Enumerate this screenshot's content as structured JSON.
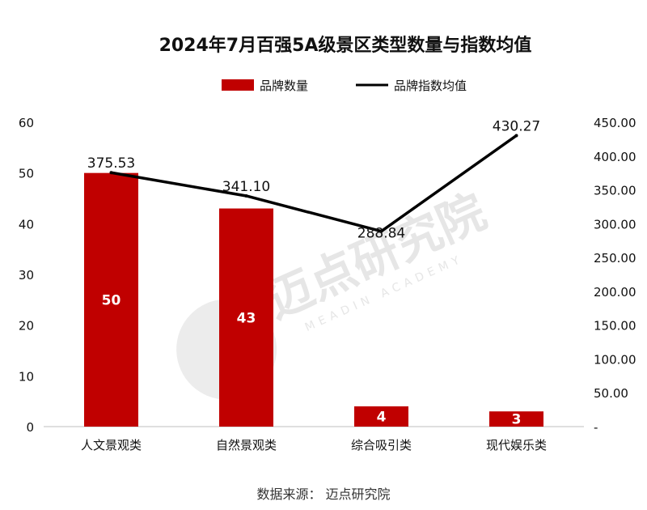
{
  "chart_data": {
    "type": "bar",
    "title": "2024年7月百强5A级景区类型数量与指数均值",
    "categories": [
      "人文景观类",
      "自然景观类",
      "综合吸引类",
      "现代娱乐类"
    ],
    "series": [
      {
        "name": "品牌数量",
        "type": "bar",
        "axis": "left",
        "values": [
          50,
          43,
          4,
          3
        ],
        "color": "#c00000"
      },
      {
        "name": "品牌指数均值",
        "type": "line",
        "axis": "right",
        "values": [
          375.53,
          341.1,
          288.84,
          430.27
        ],
        "color": "#000000"
      }
    ],
    "bar_labels": [
      "50",
      "43",
      "4",
      "3"
    ],
    "line_labels": [
      "375.53",
      "341.10",
      "288.84",
      "430.27"
    ],
    "y_left": {
      "ylim": [
        0,
        60
      ],
      "ticks": [
        "0",
        "10",
        "20",
        "30",
        "40",
        "50",
        "60"
      ]
    },
    "y_right": {
      "ylim": [
        0,
        450
      ],
      "ticks": [
        "-",
        "50.00",
        "100.00",
        "150.00",
        "200.00",
        "250.00",
        "300.00",
        "350.00",
        "400.00",
        "450.00"
      ]
    },
    "legend_position": "top-center",
    "grid": false
  },
  "source": "数据来源：  迈点研究院",
  "watermark": {
    "text": "迈点研究院",
    "sub": "MEADIN ACADEMY"
  }
}
